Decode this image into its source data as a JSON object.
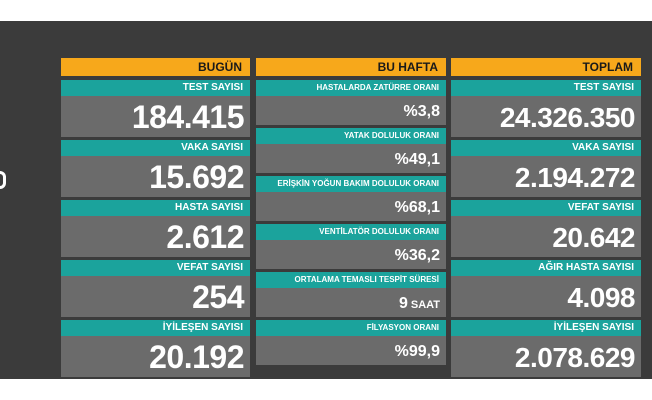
{
  "columns": {
    "today": {
      "header": "BUGÜN",
      "items": [
        {
          "label": "TEST SAYISI",
          "value": "184.415"
        },
        {
          "label": "VAKA SAYISI",
          "value": "15.692"
        },
        {
          "label": "HASTA SAYISI",
          "value": "2.612"
        },
        {
          "label": "VEFAT SAYISI",
          "value": "254"
        },
        {
          "label": "İYİLEŞEN SAYISI",
          "value": "20.192"
        }
      ]
    },
    "week": {
      "header": "BU HAFTA",
      "items": [
        {
          "label": "HASTALARDA ZATÜRRE ORANI",
          "value": "%3,8",
          "unit": ""
        },
        {
          "label": "YATAK DOLULUK ORANI",
          "value": "%49,1",
          "unit": ""
        },
        {
          "label": "ERİŞKİN YOĞUN BAKIM DOLULUK ORANI",
          "value": "%68,1",
          "unit": ""
        },
        {
          "label": "VENTİLATÖR DOLULUK ORANI",
          "value": "%36,2",
          "unit": ""
        },
        {
          "label": "ORTALAMA TEMASLI TESPİT SÜRESİ",
          "value": "9",
          "unit": "SAAT"
        },
        {
          "label": "FİLYASYON ORANI",
          "value": "%99,9",
          "unit": ""
        }
      ]
    },
    "total": {
      "header": "TOPLAM",
      "items": [
        {
          "label": "TEST SAYISI",
          "value": "24.326.350"
        },
        {
          "label": "VAKA SAYISI",
          "value": "2.194.272"
        },
        {
          "label": "VEFAT SAYISI",
          "value": "20.642"
        },
        {
          "label": "AĞIR HASTA SAYISI",
          "value": "4.098"
        },
        {
          "label": "İYİLEŞEN SAYISI",
          "value": "2.078.629"
        }
      ]
    }
  },
  "colors": {
    "header": "#f7a81b",
    "label": "#1ba39c",
    "value": "#6b6b6b",
    "board": "#3b3b3b"
  }
}
